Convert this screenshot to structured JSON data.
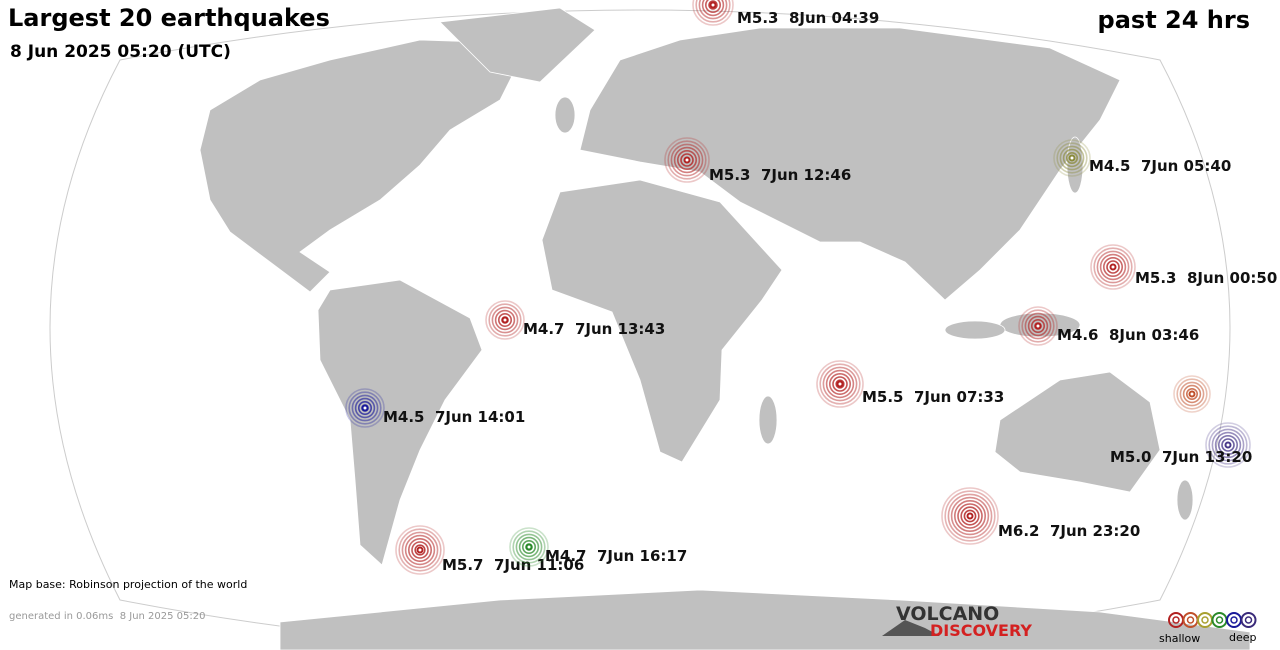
{
  "header": {
    "title": "Largest 20 earthquakes",
    "subtitle": "8 Jun 2025 05:20 (UTC)",
    "period": "past 24 hrs"
  },
  "quakes": [
    {
      "label": "M5.3  8Jun 04:39",
      "color": "#b22222"
    },
    {
      "label": "M5.3  7Jun 12:46",
      "color": "#b22222"
    },
    {
      "label": "M4.5  7Jun 05:40",
      "color": "#8a8a3a"
    },
    {
      "label": "M5.3  8Jun 00:50",
      "color": "#b22222"
    },
    {
      "label": "M4.6  8Jun 03:46",
      "color": "#b22222"
    },
    {
      "label": "M4.7  7Jun 13:43",
      "color": "#b22222"
    },
    {
      "label": "M5.5  7Jun 07:33",
      "color": "#b22222"
    },
    {
      "color": "#c0502a"
    },
    {
      "label": "M5.0  7Jun 13:20",
      "color": "#4a3a8a"
    },
    {
      "label": "M4.5  7Jun 14:01",
      "color": "#1a1a9a"
    },
    {
      "label": "M6.2  7Jun 23:20",
      "color": "#b22222"
    },
    {
      "label": "M5.7  7Jun 11:06",
      "color": "#b22222"
    },
    {
      "label": "M4.7  7Jun 16:17",
      "color": "#2a8a2a"
    }
  ],
  "footer": {
    "map_base": "Map base: Robinson projection of the world",
    "generated": "generated in 0.06ms  8 Jun 2025 05:20"
  },
  "logo": {
    "line1": "VOLCANO",
    "line2": "DISCOVERY"
  },
  "legend": {
    "shallow": "shallow",
    "deep": "deep",
    "colors": [
      "#b22222",
      "#c0502a",
      "#a8a030",
      "#2a8a2a",
      "#1a1a9a",
      "#3a2a7a"
    ]
  }
}
